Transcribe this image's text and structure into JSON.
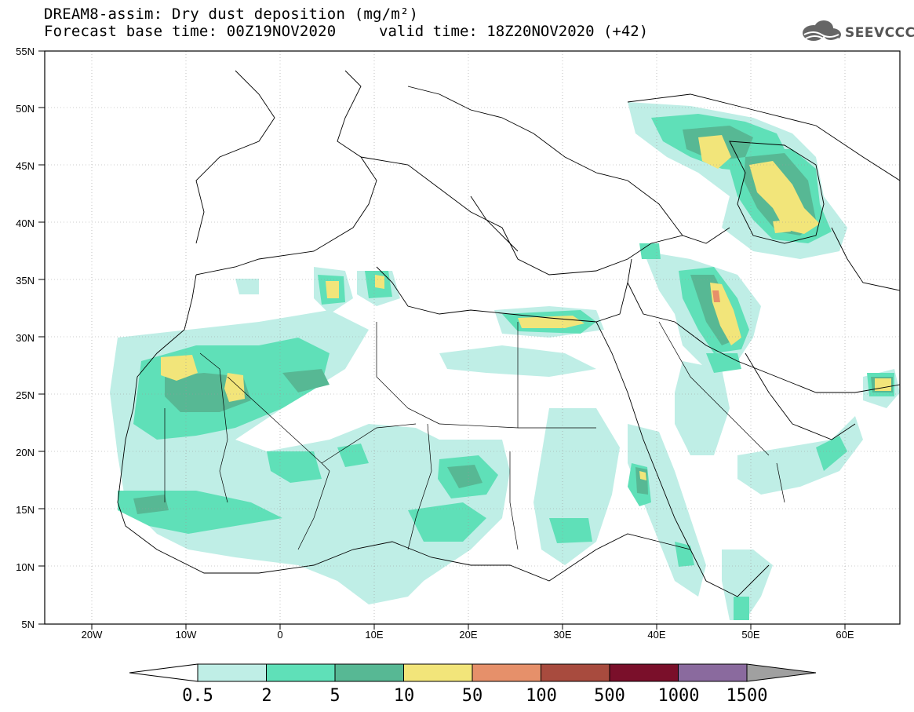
{
  "header": {
    "title": "DREAM8-assim: Dry dust deposition (mg/m²)",
    "base_time": "Forecast base time: 00Z19NOV2020",
    "valid_time": "valid time: 18Z20NOV2020 (+42)"
  },
  "logo": {
    "text": "SEEVCCC",
    "icon": "cloud-icon"
  },
  "map": {
    "lat_labels": [
      "55N",
      "50N",
      "45N",
      "40N",
      "35N",
      "30N",
      "25N",
      "20N",
      "15N",
      "10N",
      "5N"
    ],
    "lon_labels": [
      "20W",
      "10W",
      "0",
      "10E",
      "20E",
      "30E",
      "40E",
      "50E",
      "60E"
    ]
  },
  "legend": {
    "labels": [
      "0.5",
      "2",
      "5",
      "10",
      "50",
      "100",
      "500",
      "1000",
      "1500"
    ],
    "colors": [
      "#bfeee6",
      "#5fe0b8",
      "#57b894",
      "#f2e57a",
      "#e6906a",
      "#a84b3e",
      "#7a0f2a",
      "#8a6a9e"
    ],
    "under_color": "#ffffff",
    "over_color": "#a0a0a0"
  },
  "colors": {
    "level1": "#bfeee6",
    "level2": "#5fe0b8",
    "level3": "#57b894",
    "level4": "#f2e57a",
    "level5": "#e6906a"
  }
}
